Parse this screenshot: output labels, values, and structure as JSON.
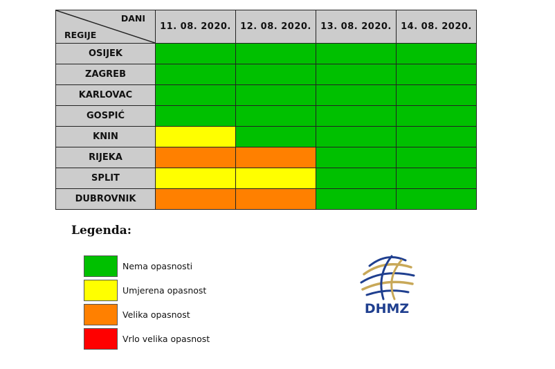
{
  "header": {
    "columns_label": "DANI",
    "rows_label": "REGIJE",
    "dates": [
      "11. 08. 2020.",
      "12. 08. 2020.",
      "13. 08. 2020.",
      "14. 08. 2020."
    ]
  },
  "colors": {
    "none": "#00c000",
    "moderate": "#ffff00",
    "high": "#ff8000",
    "very_high": "#ff0000",
    "header_bg": "#cccccc",
    "logo_blue": "#1f3f8f",
    "logo_gold": "#c8a858"
  },
  "rows": [
    {
      "region": "OSIJEK",
      "levels": [
        "none",
        "none",
        "none",
        "none"
      ]
    },
    {
      "region": "ZAGREB",
      "levels": [
        "none",
        "none",
        "none",
        "none"
      ]
    },
    {
      "region": "KARLOVAC",
      "levels": [
        "none",
        "none",
        "none",
        "none"
      ]
    },
    {
      "region": "GOSPIĆ",
      "levels": [
        "none",
        "none",
        "none",
        "none"
      ]
    },
    {
      "region": "KNIN",
      "levels": [
        "moderate",
        "none",
        "none",
        "none"
      ]
    },
    {
      "region": "RIJEKA",
      "levels": [
        "high",
        "high",
        "none",
        "none"
      ]
    },
    {
      "region": "SPLIT",
      "levels": [
        "moderate",
        "moderate",
        "none",
        "none"
      ]
    },
    {
      "region": "DUBROVNIK",
      "levels": [
        "high",
        "high",
        "none",
        "none"
      ]
    }
  ],
  "legend": {
    "title": "Legenda:",
    "items": [
      {
        "level": "none",
        "label": "Nema opasnosti"
      },
      {
        "level": "moderate",
        "label": "Umjerena opasnost"
      },
      {
        "level": "high",
        "label": "Velika opasnost"
      },
      {
        "level": "very_high",
        "label": "Vrlo velika opasnost"
      }
    ]
  },
  "logo": {
    "text": "DHMZ"
  }
}
